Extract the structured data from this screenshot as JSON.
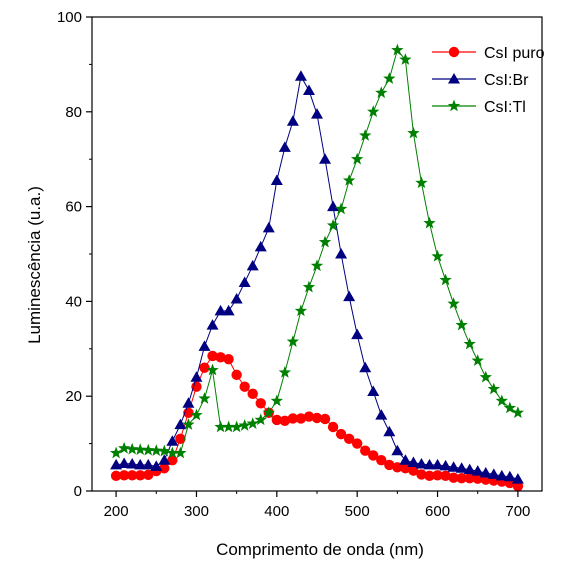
{
  "chart_data": {
    "type": "line",
    "xlabel": "Comprimento de onda (nm)",
    "ylabel": "Luminescência (u.a.)",
    "xlim": [
      170,
      730
    ],
    "ylim": [
      0,
      100
    ],
    "xticks": [
      200,
      300,
      400,
      500,
      600,
      700
    ],
    "yticks": [
      0,
      20,
      40,
      60,
      80,
      100
    ],
    "legend_position": "top-right",
    "grid": false,
    "series": [
      {
        "name": "CsI puro",
        "color": "#ff0000",
        "marker": "circle",
        "points": [
          [
            200,
            3.2
          ],
          [
            210,
            3.3
          ],
          [
            220,
            3.3
          ],
          [
            230,
            3.3
          ],
          [
            240,
            3.4
          ],
          [
            250,
            4.2
          ],
          [
            260,
            4.8
          ],
          [
            270,
            6.5
          ],
          [
            280,
            11
          ],
          [
            290,
            16.5
          ],
          [
            300,
            22
          ],
          [
            310,
            26
          ],
          [
            320,
            28.5
          ],
          [
            330,
            28.2
          ],
          [
            340,
            27.8
          ],
          [
            350,
            24.5
          ],
          [
            360,
            22
          ],
          [
            370,
            20.5
          ],
          [
            380,
            18.5
          ],
          [
            390,
            16.5
          ],
          [
            400,
            15
          ],
          [
            410,
            14.8
          ],
          [
            420,
            15.3
          ],
          [
            430,
            15.3
          ],
          [
            440,
            15.7
          ],
          [
            450,
            15.4
          ],
          [
            460,
            15.2
          ],
          [
            470,
            13.5
          ],
          [
            480,
            12
          ],
          [
            490,
            11
          ],
          [
            500,
            10
          ],
          [
            510,
            8.5
          ],
          [
            520,
            7.5
          ],
          [
            530,
            6.5
          ],
          [
            540,
            5.5
          ],
          [
            550,
            5
          ],
          [
            560,
            4.8
          ],
          [
            570,
            4.3
          ],
          [
            580,
            3.5
          ],
          [
            590,
            3.2
          ],
          [
            600,
            3.3
          ],
          [
            610,
            3.2
          ],
          [
            620,
            2.8
          ],
          [
            630,
            2.7
          ],
          [
            640,
            2.7
          ],
          [
            650,
            2.6
          ],
          [
            660,
            2.4
          ],
          [
            670,
            2.2
          ],
          [
            680,
            2
          ],
          [
            690,
            1.7
          ],
          [
            700,
            1
          ]
        ]
      },
      {
        "name": "CsI:Br",
        "color": "#000080",
        "marker": "triangle",
        "points": [
          [
            200,
            5.5
          ],
          [
            210,
            5.8
          ],
          [
            220,
            5.7
          ],
          [
            230,
            5.5
          ],
          [
            240,
            5.5
          ],
          [
            250,
            5.2
          ],
          [
            260,
            6.5
          ],
          [
            270,
            10.5
          ],
          [
            280,
            14
          ],
          [
            290,
            18.5
          ],
          [
            300,
            24
          ],
          [
            310,
            30.5
          ],
          [
            320,
            35
          ],
          [
            330,
            38
          ],
          [
            340,
            38
          ],
          [
            350,
            40.5
          ],
          [
            360,
            44
          ],
          [
            370,
            47.5
          ],
          [
            380,
            51.5
          ],
          [
            390,
            55.5
          ],
          [
            400,
            65.5
          ],
          [
            410,
            72.5
          ],
          [
            420,
            78
          ],
          [
            430,
            87.5
          ],
          [
            440,
            84.5
          ],
          [
            450,
            79.5
          ],
          [
            460,
            70
          ],
          [
            470,
            60
          ],
          [
            480,
            50
          ],
          [
            490,
            41
          ],
          [
            500,
            33
          ],
          [
            510,
            26
          ],
          [
            520,
            21
          ],
          [
            530,
            16
          ],
          [
            540,
            12.5
          ],
          [
            550,
            8.5
          ],
          [
            560,
            6.5
          ],
          [
            570,
            6
          ],
          [
            580,
            5.7
          ],
          [
            590,
            5.5
          ],
          [
            600,
            5.5
          ],
          [
            610,
            5.3
          ],
          [
            620,
            5
          ],
          [
            630,
            4.8
          ],
          [
            640,
            4.5
          ],
          [
            650,
            4.2
          ],
          [
            660,
            3.8
          ],
          [
            670,
            3.5
          ],
          [
            680,
            3.2
          ],
          [
            690,
            3
          ],
          [
            700,
            2.5
          ]
        ]
      },
      {
        "name": "CsI:Tl",
        "color": "#008000",
        "marker": "star",
        "points": [
          [
            200,
            8
          ],
          [
            210,
            9
          ],
          [
            220,
            8.8
          ],
          [
            230,
            8.7
          ],
          [
            240,
            8.6
          ],
          [
            250,
            8.5
          ],
          [
            260,
            8.4
          ],
          [
            270,
            8
          ],
          [
            280,
            8
          ],
          [
            290,
            14
          ],
          [
            300,
            16
          ],
          [
            310,
            19.5
          ],
          [
            320,
            25.5
          ],
          [
            330,
            13.5
          ],
          [
            340,
            13.5
          ],
          [
            350,
            13.5
          ],
          [
            360,
            13.8
          ],
          [
            370,
            14.2
          ],
          [
            380,
            15
          ],
          [
            390,
            16.5
          ],
          [
            400,
            19
          ],
          [
            410,
            25
          ],
          [
            420,
            31.5
          ],
          [
            430,
            38
          ],
          [
            440,
            43
          ],
          [
            450,
            47.5
          ],
          [
            460,
            52.5
          ],
          [
            470,
            56
          ],
          [
            480,
            59.5
          ],
          [
            490,
            65.5
          ],
          [
            500,
            70
          ],
          [
            510,
            75
          ],
          [
            520,
            80
          ],
          [
            530,
            84
          ],
          [
            540,
            87
          ],
          [
            550,
            93
          ],
          [
            560,
            91
          ],
          [
            570,
            75.5
          ],
          [
            580,
            65
          ],
          [
            590,
            56.5
          ],
          [
            600,
            49.5
          ],
          [
            610,
            44.5
          ],
          [
            620,
            39.5
          ],
          [
            630,
            35
          ],
          [
            640,
            31
          ],
          [
            650,
            27.5
          ],
          [
            660,
            24
          ],
          [
            670,
            21.5
          ],
          [
            680,
            19
          ],
          [
            690,
            17.5
          ],
          [
            700,
            16.5
          ]
        ]
      }
    ]
  }
}
